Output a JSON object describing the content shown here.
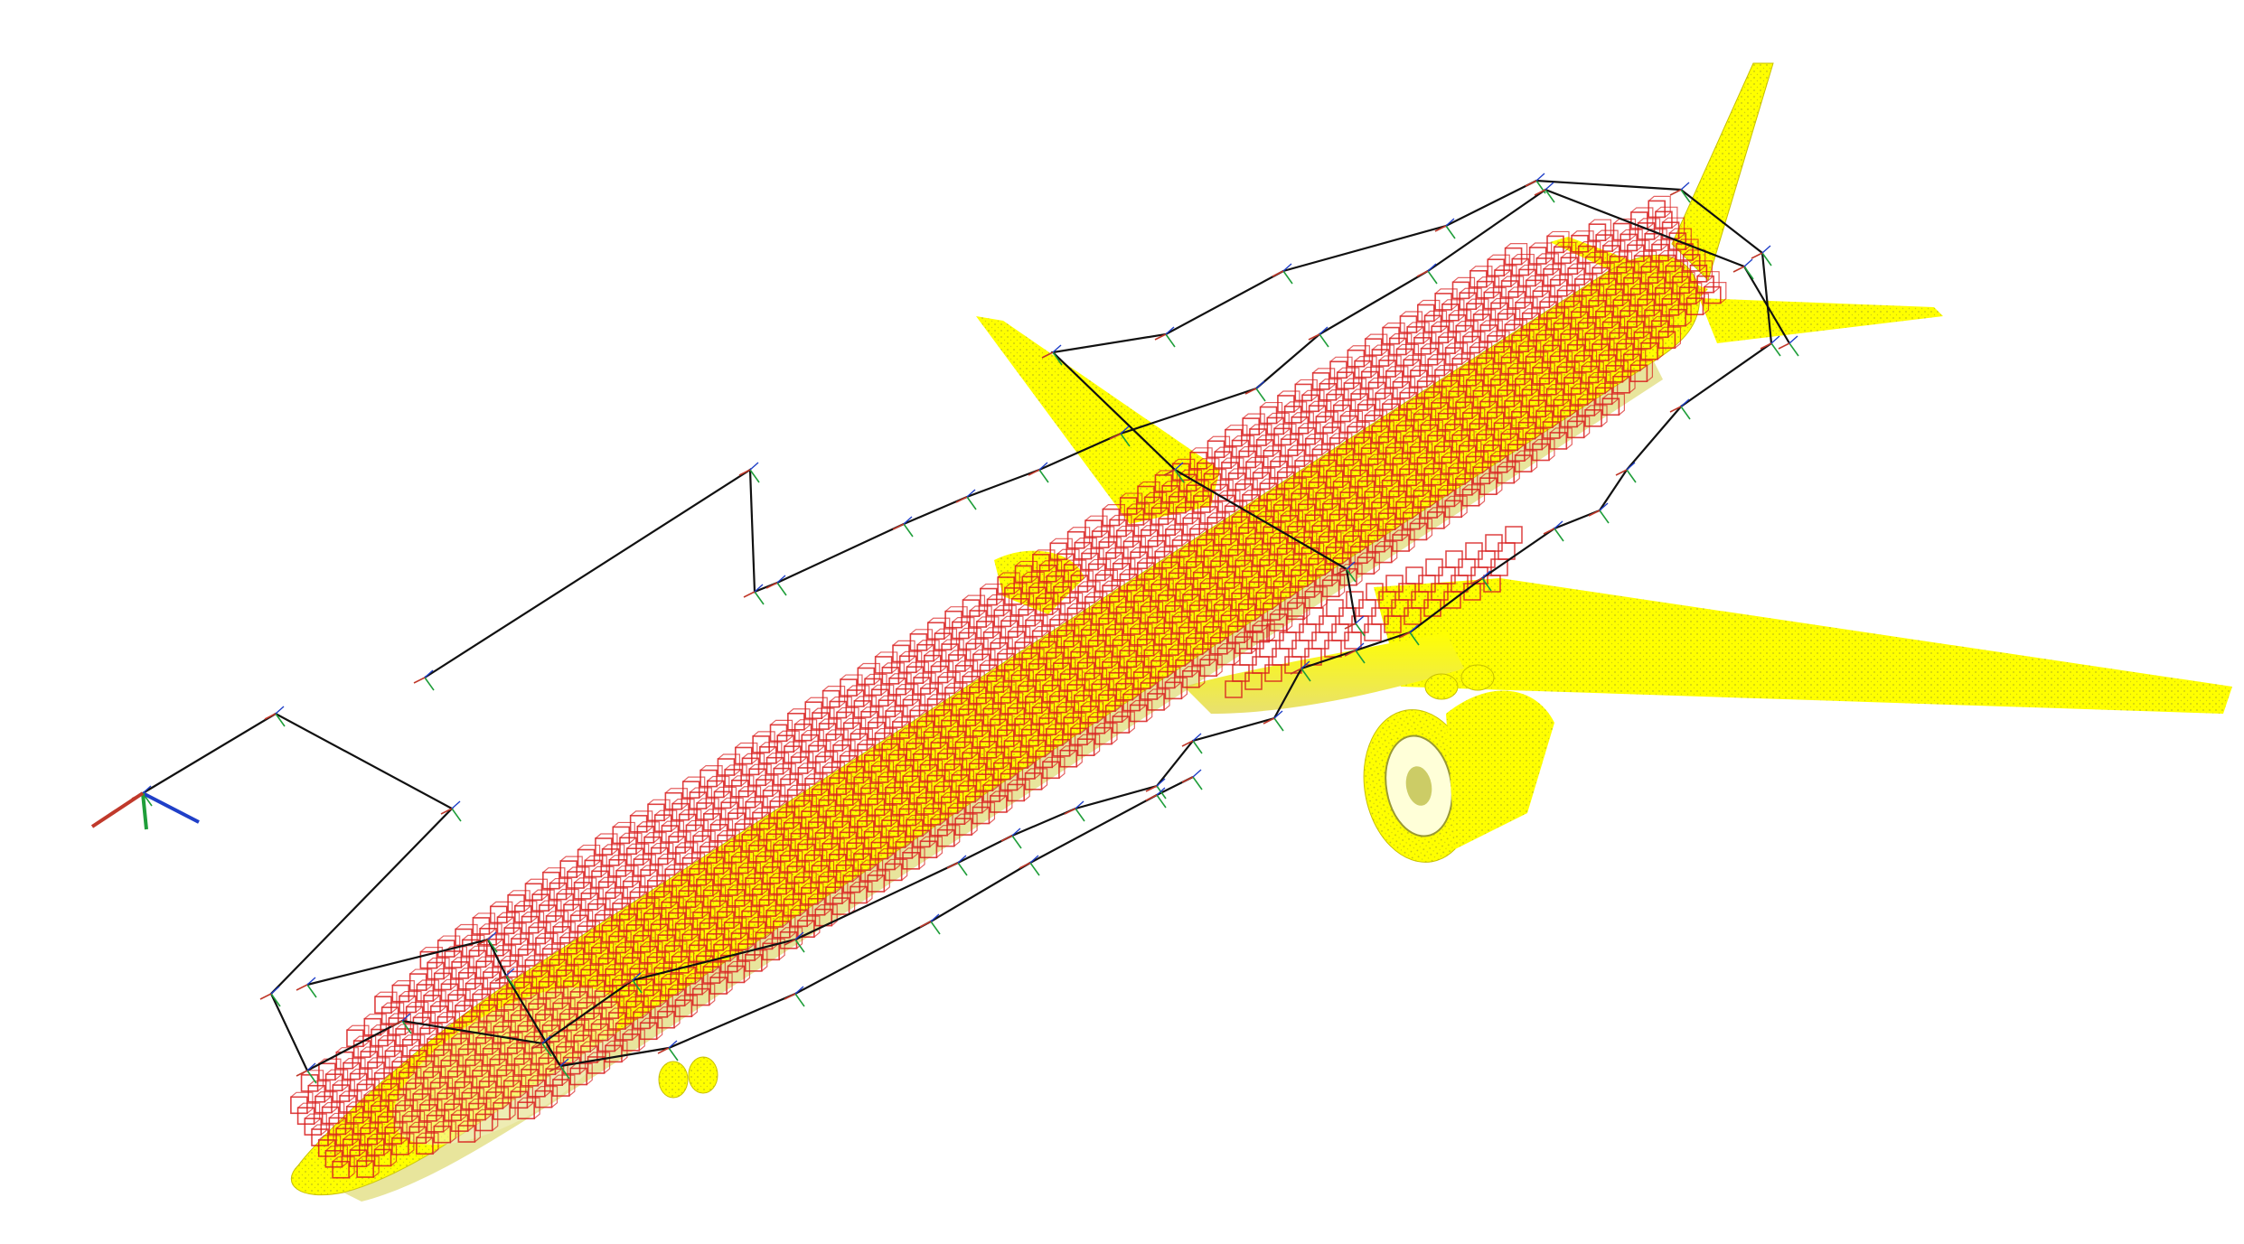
{
  "scene": {
    "subject": "aircraft-point-cloud-with-voxel-grid-and-camera-trajectory",
    "colors": {
      "background": "#ffffff",
      "aircraft": "#ffff00",
      "aircraft_shade": "#e2d800",
      "aircraft_dots": "#8a8a2a",
      "voxel": "#d81e1e",
      "trajectory": "#111111",
      "axis_x": "#c0392b",
      "axis_y": "#1f9e3a",
      "axis_z": "#1f3fc8"
    },
    "icons": {
      "origin_axes": "xyz-axes-icon",
      "camera_pose": "camera-frame-icon"
    }
  }
}
